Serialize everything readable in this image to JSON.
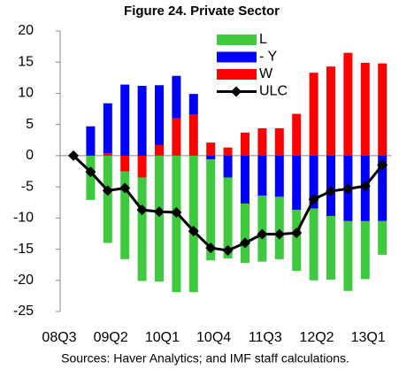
{
  "chart_data": {
    "type": "bar",
    "stacked": true,
    "title": "Figure 24. Private Sector",
    "source": "Sources: Haver Analytics; and IMF staff calculations.",
    "categories": [
      "08Q3",
      null,
      null,
      "09Q2",
      null,
      null,
      "10Q1",
      null,
      null,
      "10Q4",
      null,
      null,
      "11Q3",
      null,
      null,
      "12Q2",
      null,
      null,
      "13Q1"
    ],
    "series": [
      {
        "name": "L",
        "type": "bar",
        "color": "#3ec93e",
        "values": [
          0,
          -7.1,
          -14.0,
          -14.1,
          -16.6,
          -20.2,
          -21.9,
          -21.9,
          -16.2,
          -13.0,
          -9.5,
          -10.6,
          -10.0,
          -9.8,
          -11.5,
          -10.2,
          -11.2,
          -9.3,
          -5.4
        ]
      },
      {
        "name": "- Y",
        "type": "bar",
        "color": "#0000ff",
        "values": [
          0,
          4.7,
          8.0,
          11.4,
          11.2,
          9.6,
          6.8,
          3.3,
          -0.6,
          -3.5,
          -7.7,
          -6.4,
          -6.6,
          -8.7,
          -8.5,
          -9.7,
          -10.5,
          -10.5,
          -10.5
        ]
      },
      {
        "name": "W",
        "type": "bar",
        "color": "#ff0000",
        "values": [
          0,
          0,
          0.4,
          -2.5,
          -3.5,
          1.7,
          6.0,
          6.6,
          2.1,
          1.3,
          3.7,
          4.4,
          4.4,
          6.7,
          13.3,
          14.3,
          16.5,
          14.9,
          14.8
        ]
      },
      {
        "name": "ULC",
        "type": "line",
        "color": "#000000",
        "values": [
          0,
          -2.6,
          -5.6,
          -5.2,
          -8.7,
          -9.0,
          -9.1,
          -12.1,
          -14.8,
          -15.2,
          -14.0,
          -12.6,
          -12.6,
          -12.4,
          -7.0,
          -5.7,
          -5.3,
          -4.9,
          -1.5
        ]
      }
    ],
    "ylim": [
      -25,
      20
    ],
    "yticks": [
      -25,
      -20,
      -15,
      -10,
      -5,
      0,
      5,
      10,
      15,
      20
    ]
  }
}
